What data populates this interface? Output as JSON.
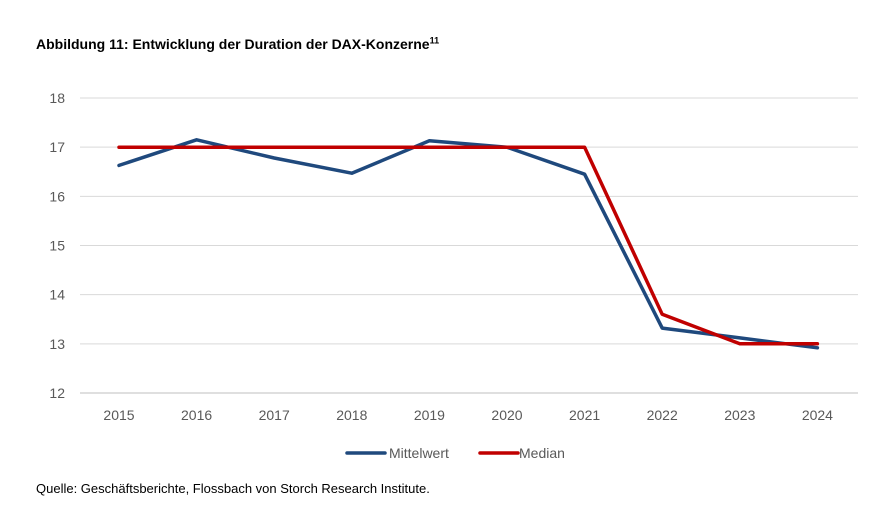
{
  "title": {
    "main": "Abbildung 11: Entwicklung der Duration der DAX-Konzerne",
    "footnote": "11"
  },
  "source": "Quelle: Geschäftsberichte, Flossbach von Storch Research Institute.",
  "chart_data": {
    "type": "line",
    "title": "Abbildung 11: Entwicklung der Duration der DAX-Konzerne",
    "xlabel": "",
    "ylabel": "",
    "categories": [
      "2015",
      "2016",
      "2017",
      "2018",
      "2019",
      "2020",
      "2021",
      "2022",
      "2023",
      "2024"
    ],
    "ylim": [
      12,
      18
    ],
    "yticks": [
      12,
      13,
      14,
      15,
      16,
      17,
      18
    ],
    "grid": true,
    "legend_position": "bottom",
    "series": [
      {
        "name": "Mittelwert",
        "color": "#1F497D",
        "values": [
          16.63,
          17.15,
          16.78,
          16.47,
          17.13,
          17.0,
          16.45,
          13.32,
          13.12,
          12.92
        ]
      },
      {
        "name": "Median",
        "color": "#C00000",
        "values": [
          17.0,
          17.0,
          17.0,
          17.0,
          17.0,
          17.0,
          17.0,
          13.6,
          13.0,
          13.0
        ]
      }
    ]
  }
}
